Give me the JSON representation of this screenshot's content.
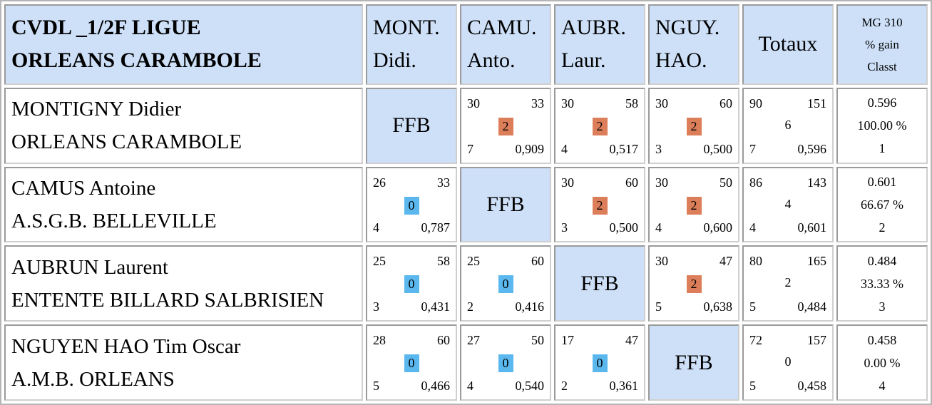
{
  "header": {
    "title_line1": "CVDL _1/2F LIGUE",
    "title_line2": "ORLEANS CARAMBOLE",
    "columns": [
      {
        "line1": "MONT.",
        "line2": "Didi."
      },
      {
        "line1": "CAMU.",
        "line2": "Anto."
      },
      {
        "line1": "AUBR.",
        "line2": "Laur."
      },
      {
        "line1": "NGUY.",
        "line2": "HAO."
      }
    ],
    "totals_label": "Totaux",
    "mg_line1": "MG 310",
    "mg_line2": "% gain",
    "mg_line3": "Classt"
  },
  "ffb_label": "FFB",
  "colors": {
    "header_bg": "#cde0f8",
    "win_badge": "#dd7e5a",
    "loss_badge": "#5bb8ef"
  },
  "rows": [
    {
      "name": "MONTIGNY Didier",
      "club": "ORLEANS CARAMBOLE",
      "cells": [
        null,
        {
          "points": "30",
          "reprises": "33",
          "match_points": "2",
          "result": "win",
          "serie": "7",
          "moyenne": "0,909"
        },
        {
          "points": "30",
          "reprises": "58",
          "match_points": "2",
          "result": "win",
          "serie": "4",
          "moyenne": "0,517"
        },
        {
          "points": "30",
          "reprises": "60",
          "match_points": "2",
          "result": "win",
          "serie": "3",
          "moyenne": "0,500"
        }
      ],
      "totals": {
        "points": "90",
        "reprises": "151",
        "match_points": "6",
        "serie": "7",
        "moyenne": "0,596"
      },
      "mg": {
        "moyenne": "0.596",
        "pct_gain": "100.00 %",
        "rank": "1"
      }
    },
    {
      "name": "CAMUS Antoine",
      "club": "A.S.G.B. BELLEVILLE",
      "cells": [
        {
          "points": "26",
          "reprises": "33",
          "match_points": "0",
          "result": "loss",
          "serie": "4",
          "moyenne": "0,787"
        },
        null,
        {
          "points": "30",
          "reprises": "60",
          "match_points": "2",
          "result": "win",
          "serie": "3",
          "moyenne": "0,500"
        },
        {
          "points": "30",
          "reprises": "50",
          "match_points": "2",
          "result": "win",
          "serie": "4",
          "moyenne": "0,600"
        }
      ],
      "totals": {
        "points": "86",
        "reprises": "143",
        "match_points": "4",
        "serie": "4",
        "moyenne": "0,601"
      },
      "mg": {
        "moyenne": "0.601",
        "pct_gain": "66.67 %",
        "rank": "2"
      }
    },
    {
      "name": "AUBRUN Laurent",
      "club": "ENTENTE BILLARD SALBRISIEN",
      "cells": [
        {
          "points": "25",
          "reprises": "58",
          "match_points": "0",
          "result": "loss",
          "serie": "3",
          "moyenne": "0,431"
        },
        {
          "points": "25",
          "reprises": "60",
          "match_points": "0",
          "result": "loss",
          "serie": "2",
          "moyenne": "0,416"
        },
        null,
        {
          "points": "30",
          "reprises": "47",
          "match_points": "2",
          "result": "win",
          "serie": "5",
          "moyenne": "0,638"
        }
      ],
      "totals": {
        "points": "80",
        "reprises": "165",
        "match_points": "2",
        "serie": "5",
        "moyenne": "0,484"
      },
      "mg": {
        "moyenne": "0.484",
        "pct_gain": "33.33 %",
        "rank": "3"
      }
    },
    {
      "name": "NGUYEN HAO Tim Oscar",
      "club": "A.M.B. ORLEANS",
      "cells": [
        {
          "points": "28",
          "reprises": "60",
          "match_points": "0",
          "result": "loss",
          "serie": "5",
          "moyenne": "0,466"
        },
        {
          "points": "27",
          "reprises": "50",
          "match_points": "0",
          "result": "loss",
          "serie": "4",
          "moyenne": "0,540"
        },
        {
          "points": "17",
          "reprises": "47",
          "match_points": "0",
          "result": "loss",
          "serie": "2",
          "moyenne": "0,361"
        },
        null
      ],
      "totals": {
        "points": "72",
        "reprises": "157",
        "match_points": "0",
        "serie": "5",
        "moyenne": "0,458"
      },
      "mg": {
        "moyenne": "0.458",
        "pct_gain": "0.00 %",
        "rank": "4"
      }
    }
  ]
}
